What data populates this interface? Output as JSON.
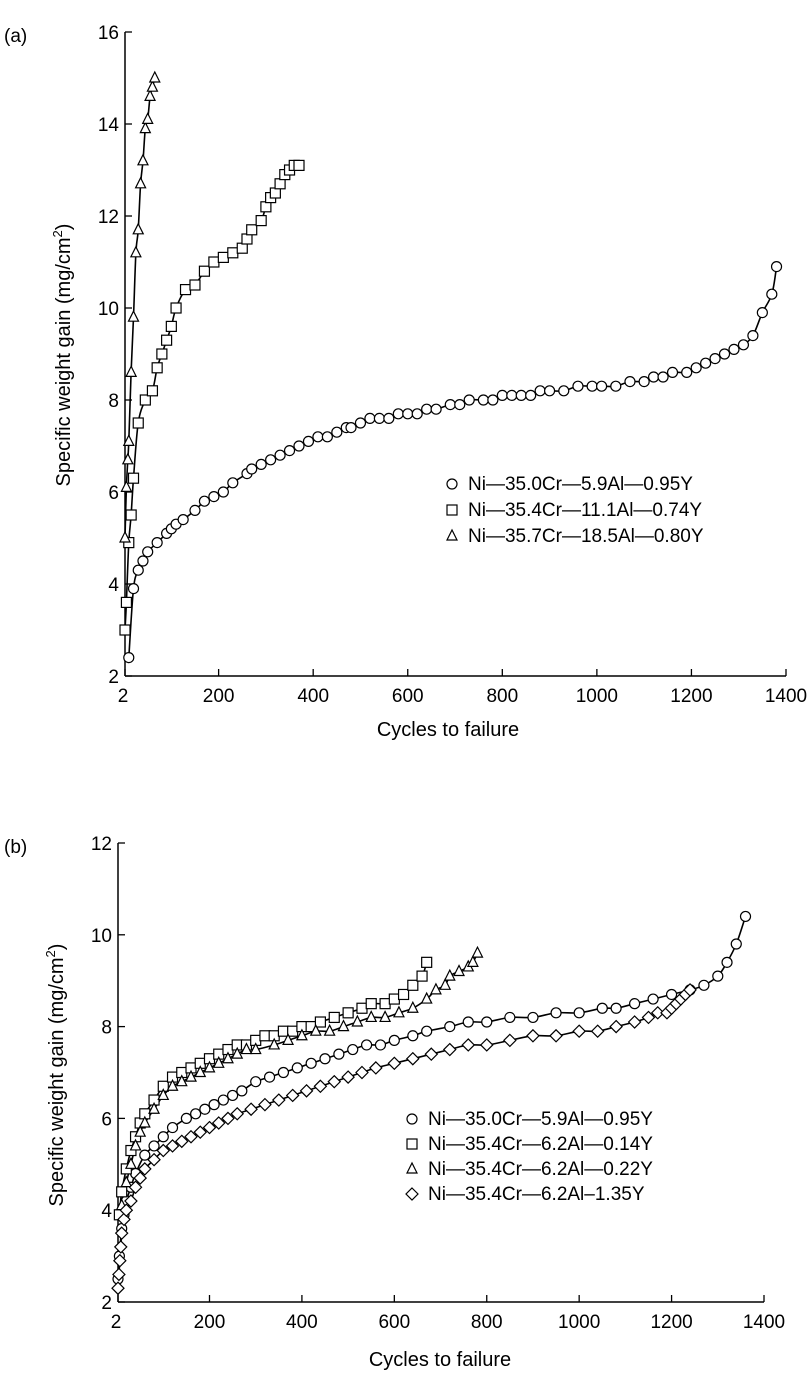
{
  "chart_data": [
    {
      "type": "scatter",
      "panel_label": "(a)",
      "xlabel": "Cycles to failure",
      "ylabel_main": "Specific weight gain (mg/cm",
      "ylabel_sup": "2",
      "ylabel_end": ")",
      "xlim": [
        2,
        1400
      ],
      "ylim": [
        2,
        16
      ],
      "xticks": [
        2,
        200,
        400,
        600,
        800,
        1000,
        1200,
        1400
      ],
      "xtick_labels": [
        "2",
        "200",
        "400",
        "600",
        "800",
        "1000",
        "1200",
        "1400"
      ],
      "yticks": [
        2,
        4,
        6,
        8,
        10,
        12,
        14,
        16
      ],
      "ytick_labels": [
        "2",
        "4",
        "6",
        "8",
        "10",
        "12",
        "14",
        "16"
      ],
      "legend_position": "center-right",
      "series": [
        {
          "name": "Ni—35.0Cr—5.9Al—0.95Y",
          "marker": "circle",
          "x": [
            10,
            20,
            30,
            40,
            50,
            70,
            90,
            100,
            110,
            125,
            150,
            170,
            190,
            210,
            230,
            260,
            270,
            290,
            310,
            330,
            350,
            370,
            390,
            410,
            430,
            450,
            470,
            480,
            500,
            520,
            540,
            560,
            580,
            600,
            620,
            640,
            660,
            690,
            710,
            730,
            760,
            780,
            800,
            820,
            840,
            860,
            880,
            900,
            930,
            960,
            990,
            1010,
            1040,
            1070,
            1100,
            1120,
            1140,
            1160,
            1190,
            1210,
            1230,
            1250,
            1270,
            1290,
            1310,
            1330,
            1350,
            1370,
            1380
          ],
          "y": [
            2.4,
            3.9,
            4.3,
            4.5,
            4.7,
            4.9,
            5.1,
            5.2,
            5.3,
            5.4,
            5.6,
            5.8,
            5.9,
            6.0,
            6.2,
            6.4,
            6.5,
            6.6,
            6.7,
            6.8,
            6.9,
            7.0,
            7.1,
            7.2,
            7.2,
            7.3,
            7.4,
            7.4,
            7.5,
            7.6,
            7.6,
            7.6,
            7.7,
            7.7,
            7.7,
            7.8,
            7.8,
            7.9,
            7.9,
            8.0,
            8.0,
            8.0,
            8.1,
            8.1,
            8.1,
            8.1,
            8.2,
            8.2,
            8.2,
            8.3,
            8.3,
            8.3,
            8.3,
            8.4,
            8.4,
            8.5,
            8.5,
            8.6,
            8.6,
            8.7,
            8.8,
            8.9,
            9.0,
            9.1,
            9.2,
            9.4,
            9.9,
            10.3,
            10.9
          ]
        },
        {
          "name": "Ni—35.4Cr—11.1Al—0.74Y",
          "marker": "square",
          "x": [
            2,
            5,
            10,
            15,
            20,
            30,
            45,
            60,
            70,
            80,
            90,
            100,
            110,
            130,
            150,
            170,
            190,
            210,
            230,
            250,
            260,
            270,
            290,
            300,
            310,
            320,
            330,
            340,
            350,
            360,
            370
          ],
          "y": [
            3.0,
            3.6,
            4.9,
            5.5,
            6.3,
            7.5,
            8.0,
            8.2,
            8.7,
            9.0,
            9.3,
            9.6,
            10.0,
            10.4,
            10.5,
            10.8,
            11.0,
            11.1,
            11.2,
            11.3,
            11.5,
            11.7,
            11.9,
            12.2,
            12.4,
            12.5,
            12.7,
            12.9,
            13.0,
            13.1,
            13.1
          ]
        },
        {
          "name": "Ni—35.7Cr—18.5Al—0.80Y",
          "marker": "triangle",
          "x": [
            2,
            5,
            8,
            10,
            15,
            20,
            25,
            30,
            35,
            40,
            45,
            50,
            55,
            60,
            65
          ],
          "y": [
            5.0,
            6.1,
            6.7,
            7.1,
            8.6,
            9.8,
            11.2,
            11.7,
            12.7,
            13.2,
            13.9,
            14.1,
            14.6,
            14.8,
            15.0
          ]
        }
      ]
    },
    {
      "type": "scatter",
      "panel_label": "(b)",
      "xlabel": "Cycles to failure",
      "ylabel_main": "Specific weight gain (mg/cm",
      "ylabel_sup": "2",
      "ylabel_end": ")",
      "xlim": [
        2,
        1400
      ],
      "ylim": [
        2,
        12
      ],
      "xticks": [
        2,
        200,
        400,
        600,
        800,
        1000,
        1200,
        1400
      ],
      "xtick_labels": [
        "2",
        "200",
        "400",
        "600",
        "800",
        "1000",
        "1200",
        "1400"
      ],
      "yticks": [
        2,
        4,
        6,
        8,
        10,
        12
      ],
      "ytick_labels": [
        "2",
        "4",
        "6",
        "8",
        "10",
        "12"
      ],
      "legend_position": "center-right",
      "series": [
        {
          "name": "Ni—35.0Cr—5.9Al—0.95Y",
          "marker": "circle",
          "x": [
            2,
            5,
            10,
            15,
            20,
            30,
            40,
            60,
            80,
            100,
            120,
            150,
            170,
            190,
            210,
            230,
            250,
            270,
            300,
            330,
            360,
            390,
            420,
            450,
            480,
            510,
            540,
            570,
            600,
            640,
            670,
            720,
            760,
            800,
            850,
            900,
            950,
            1000,
            1050,
            1080,
            1120,
            1160,
            1200,
            1240,
            1270,
            1300,
            1320,
            1340,
            1360
          ],
          "y": [
            2.5,
            3.0,
            3.6,
            3.9,
            4.2,
            4.5,
            4.8,
            5.2,
            5.4,
            5.6,
            5.8,
            6.0,
            6.1,
            6.2,
            6.3,
            6.4,
            6.5,
            6.6,
            6.8,
            6.9,
            7.0,
            7.1,
            7.2,
            7.3,
            7.4,
            7.5,
            7.6,
            7.6,
            7.7,
            7.8,
            7.9,
            8.0,
            8.1,
            8.1,
            8.2,
            8.2,
            8.3,
            8.3,
            8.4,
            8.4,
            8.5,
            8.6,
            8.7,
            8.8,
            8.9,
            9.1,
            9.4,
            9.8,
            10.4
          ]
        },
        {
          "name": "Ni—35.4Cr—6.2Al—0.14Y",
          "marker": "square",
          "x": [
            5,
            10,
            20,
            30,
            40,
            50,
            60,
            80,
            100,
            120,
            140,
            160,
            180,
            200,
            220,
            240,
            260,
            280,
            300,
            320,
            340,
            360,
            380,
            400,
            420,
            440,
            470,
            500,
            530,
            550,
            580,
            600,
            620,
            640,
            660,
            670
          ],
          "y": [
            3.9,
            4.4,
            4.9,
            5.3,
            5.6,
            5.9,
            6.1,
            6.4,
            6.7,
            6.9,
            7.0,
            7.1,
            7.2,
            7.3,
            7.4,
            7.5,
            7.6,
            7.6,
            7.7,
            7.8,
            7.8,
            7.9,
            7.9,
            8.0,
            8.0,
            8.1,
            8.2,
            8.3,
            8.4,
            8.5,
            8.5,
            8.6,
            8.7,
            8.9,
            9.1,
            9.4
          ]
        },
        {
          "name": "Ni—35.4Cr—6.2Al—0.22Y",
          "marker": "triangle",
          "x": [
            10,
            20,
            30,
            40,
            50,
            60,
            80,
            100,
            120,
            140,
            160,
            180,
            200,
            220,
            240,
            260,
            280,
            300,
            340,
            370,
            400,
            430,
            460,
            490,
            520,
            550,
            580,
            610,
            640,
            670,
            690,
            710,
            720,
            740,
            760,
            770,
            780
          ],
          "y": [
            4.1,
            4.6,
            5.0,
            5.4,
            5.7,
            5.9,
            6.2,
            6.5,
            6.7,
            6.8,
            6.9,
            7.0,
            7.1,
            7.2,
            7.3,
            7.4,
            7.5,
            7.5,
            7.6,
            7.7,
            7.8,
            7.9,
            7.9,
            8.0,
            8.1,
            8.2,
            8.2,
            8.3,
            8.4,
            8.6,
            8.8,
            8.9,
            9.1,
            9.2,
            9.3,
            9.4,
            9.6
          ]
        },
        {
          "name": "Ni—35.4Cr—6.2Al–1.35Y",
          "marker": "diamond",
          "x": [
            2,
            4,
            6,
            8,
            10,
            15,
            20,
            30,
            40,
            50,
            60,
            80,
            100,
            120,
            140,
            160,
            180,
            200,
            220,
            240,
            260,
            290,
            320,
            350,
            380,
            410,
            440,
            470,
            500,
            530,
            560,
            600,
            640,
            680,
            720,
            760,
            800,
            850,
            900,
            950,
            1000,
            1040,
            1080,
            1120,
            1150,
            1170,
            1190,
            1200,
            1210,
            1220,
            1230,
            1240
          ],
          "y": [
            2.3,
            2.6,
            2.9,
            3.2,
            3.5,
            3.8,
            4.0,
            4.2,
            4.5,
            4.7,
            4.9,
            5.1,
            5.3,
            5.4,
            5.5,
            5.6,
            5.7,
            5.8,
            5.9,
            6.0,
            6.1,
            6.2,
            6.3,
            6.4,
            6.5,
            6.6,
            6.7,
            6.8,
            6.9,
            7.0,
            7.1,
            7.2,
            7.3,
            7.4,
            7.5,
            7.6,
            7.6,
            7.7,
            7.8,
            7.8,
            7.9,
            7.9,
            8.0,
            8.1,
            8.2,
            8.3,
            8.3,
            8.4,
            8.5,
            8.6,
            8.7,
            8.8
          ]
        }
      ]
    }
  ]
}
